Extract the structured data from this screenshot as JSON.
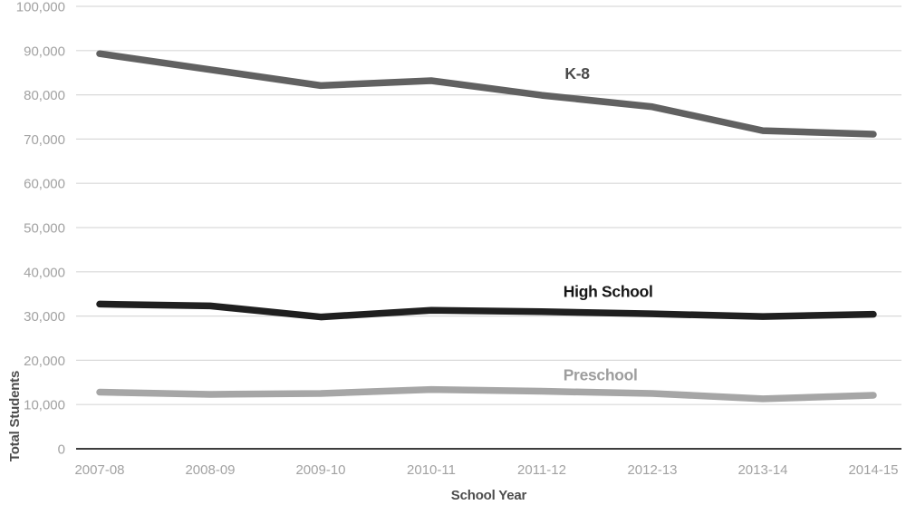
{
  "chart_data": {
    "type": "line",
    "title": "",
    "xlabel": "School Year",
    "ylabel": "Total Students",
    "categories": [
      "2007-08",
      "2008-09",
      "2009-10",
      "2010-11",
      "2011-12",
      "2012-13",
      "2013-14",
      "2014-15"
    ],
    "series": [
      {
        "name": "K-8",
        "color": "#616161",
        "label_color": "#4a4a4a",
        "values": [
          89300,
          85700,
          82100,
          83200,
          79900,
          77300,
          71900,
          71100
        ],
        "label_anchor": {
          "x_index": 4.32,
          "y_value": 84800
        }
      },
      {
        "name": "High School",
        "color": "#1f1f1f",
        "label_color": "#161616",
        "values": [
          32700,
          32300,
          29800,
          31300,
          31000,
          30500,
          29900,
          30400
        ],
        "label_anchor": {
          "x_index": 4.6,
          "y_value": 35600
        }
      },
      {
        "name": "Preschool",
        "color": "#a6a6a6",
        "label_color": "#9e9e9e",
        "values": [
          12800,
          12300,
          12500,
          13400,
          13000,
          12500,
          11300,
          12100
        ],
        "label_anchor": {
          "x_index": 4.53,
          "y_value": 16700
        }
      }
    ],
    "ylim": [
      0,
      100000
    ],
    "ytick_step": 10000,
    "ytick_labels": [
      "0",
      "10,000",
      "20,000",
      "30,000",
      "40,000",
      "50,000",
      "60,000",
      "70,000",
      "80,000",
      "90,000",
      "100,000"
    ],
    "grid": "horizontal",
    "legend": "inline-labels-right-of-center",
    "colors": {
      "gridline": "#d9d9d9",
      "axis_line": "#3d3d3d",
      "tick_label": "#a2a2a2",
      "axis_title": "#4d4d4d",
      "background": "#ffffff"
    }
  }
}
